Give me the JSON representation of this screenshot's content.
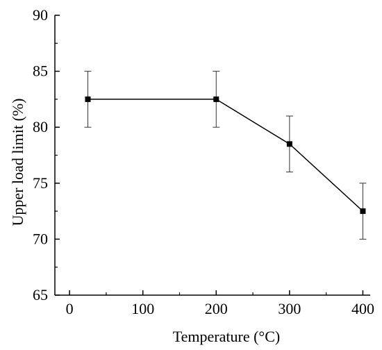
{
  "chart_data": {
    "type": "line",
    "title": "",
    "xlabel": "Temperature (°C)",
    "ylabel": "Upper load limit (%)",
    "xlim": [
      -20,
      410
    ],
    "ylim": [
      65,
      90
    ],
    "xticks": [
      0,
      100,
      200,
      300,
      400
    ],
    "yticks": [
      65,
      70,
      75,
      80,
      85,
      90
    ],
    "grid": false,
    "legend": "none",
    "series": [
      {
        "x": [
          25,
          200,
          300,
          400
        ],
        "y": [
          82.5,
          82.5,
          78.5,
          72.5
        ],
        "error": [
          2.5,
          2.5,
          2.5,
          2.5
        ],
        "color": "#000000",
        "marker": "square"
      }
    ]
  }
}
